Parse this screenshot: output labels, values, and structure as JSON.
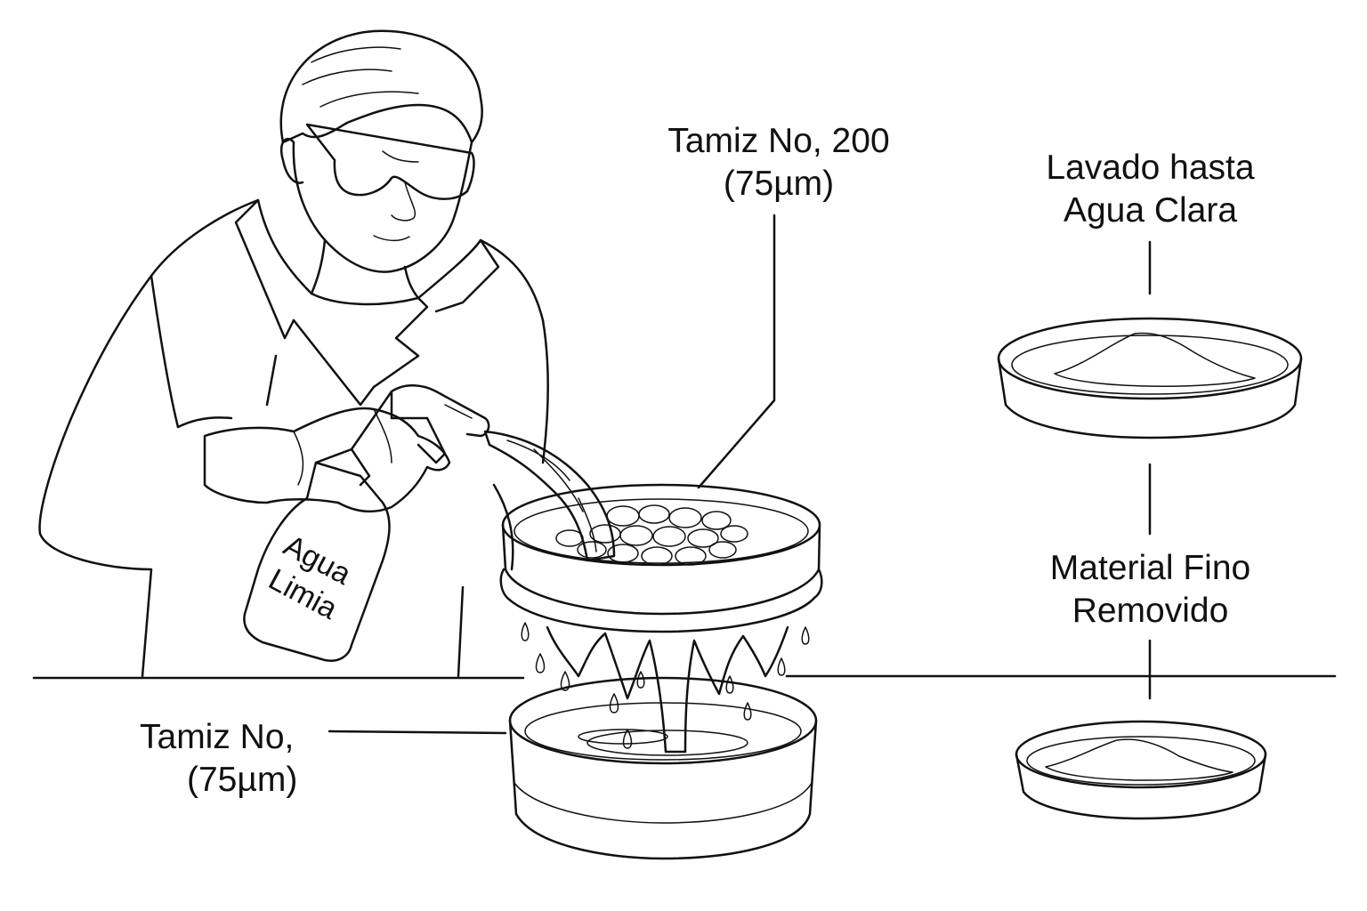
{
  "labels": {
    "sieve_top_line1": "Tamiz No, 200",
    "sieve_top_line2": "(75µm)",
    "sieve_bottom_line1": "Tamiz No,",
    "sieve_bottom_line2": "(75µm)",
    "washed_line1": "Lavado hasta",
    "washed_line2": "Agua Clara",
    "fines_line1": "Material Fino",
    "fines_line2": "Removido"
  },
  "bottle": {
    "line1": "Agua",
    "line2": "Limia"
  },
  "icons": {
    "technician": "technician-icon",
    "spray_bottle": "spray-bottle-icon",
    "top_sieve": "sieve-icon",
    "bottom_pan": "pan-icon",
    "dish_washed": "dish-icon",
    "dish_fines": "dish-icon"
  },
  "colors": {
    "ink": "#111111",
    "background": "#ffffff"
  }
}
